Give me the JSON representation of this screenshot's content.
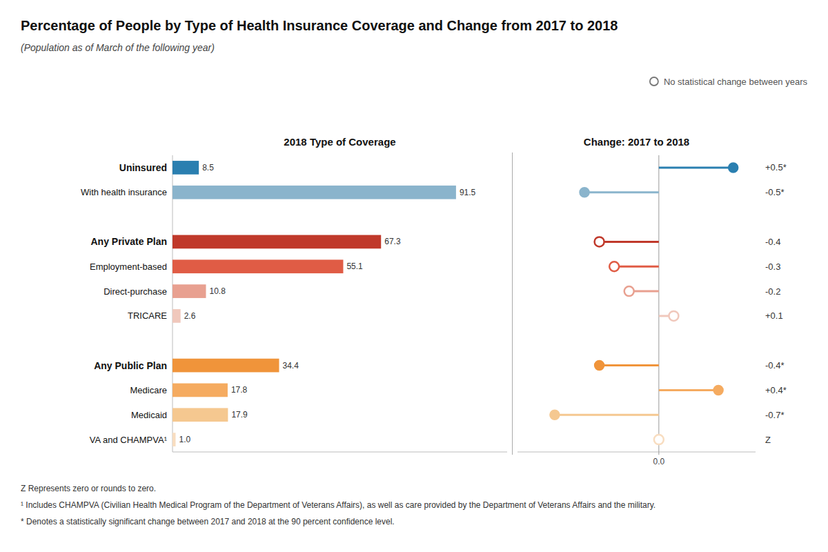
{
  "chart_data": [
    {
      "type": "bar",
      "orientation": "horizontal",
      "title": "Percentage of People by Type of Health Insurance Coverage and Change from 2017 to 2018",
      "subtitle": "(Population as of March of the following year)",
      "xlabel": "2018 Type of Coverage",
      "annotations": [
        "Z Represents zero or rounds to zero.",
        "¹ Includes CHAMPVA (Civilian Health Medical Program of the Department of Veterans Affairs), as well as care provided by the Department of Veterans Affairs and the military.",
        "* Denotes a statistically significant change between 2017 and 2018 at the 90 percent confidence level."
      ],
      "categories": [
        "Uninsured",
        "With health insurance",
        null,
        "Any Private Plan",
        "Employment-based",
        "Direct-purchase",
        "TRICARE",
        null,
        "Any Public Plan",
        "Medicare",
        "Medicaid",
        "VA and CHAMPVA¹"
      ],
      "values": [
        8.5,
        91.5,
        null,
        67.3,
        55.1,
        10.8,
        2.6,
        null,
        34.4,
        17.8,
        17.9,
        1.0
      ],
      "value_labels": [
        "8.5",
        "91.5",
        null,
        "67.3",
        "55.1",
        "10.8",
        "2.6",
        null,
        "34.4",
        "17.8",
        "17.9",
        "1.0"
      ],
      "colors": [
        "#2a7fb0",
        "#8ab4cc",
        null,
        "#c0392b",
        "#e05c45",
        "#e8a090",
        "#f0c8bc",
        null,
        "#f0943a",
        "#f5ab60",
        "#f5c890",
        "#f8ddc0"
      ],
      "xlim": [
        0,
        108
      ],
      "data_labels": true,
      "tick_labels": "y"
    },
    {
      "type": "lollipop",
      "xlabel": "Change: 2017 to 2018",
      "categories": [
        "Uninsured",
        "With health insurance",
        null,
        "Any Private Plan",
        "Employment-based",
        "Direct-purchase",
        "TRICARE",
        null,
        "Any Public Plan",
        "Medicare",
        "Medicaid",
        "VA and CHAMPVA¹"
      ],
      "xlim": [
        -0.95,
        0.65
      ],
      "xticks": [
        {
          "value": 0,
          "label": "0.0"
        }
      ],
      "legend": "upper right",
      "data_labels": true,
      "tick_labels": "x",
      "series": [
        {
          "marker": "filled_circle",
          "values": [
            0.5,
            -0.5,
            null,
            null,
            null,
            null,
            null,
            null,
            -0.4,
            0.4,
            -0.7,
            null
          ],
          "value_labels": [
            "+0.5*",
            "-0.5*",
            null,
            null,
            null,
            null,
            null,
            null,
            "-0.4*",
            "+0.4*",
            "-0.7*",
            null
          ],
          "colors": [
            "#2a7fb0",
            "#8ab4cc",
            null,
            null,
            null,
            null,
            null,
            null,
            "#f0943a",
            "#f5ab60",
            "#f5c890",
            null
          ]
        },
        {
          "name": "No statistical change between years",
          "marker": "open_circle",
          "values": [
            null,
            null,
            null,
            -0.4,
            -0.3,
            -0.2,
            0.1,
            null,
            null,
            null,
            null,
            0.0
          ],
          "value_labels": [
            null,
            null,
            null,
            "-0.4",
            "-0.3",
            "-0.2",
            "+0.1",
            null,
            null,
            null,
            null,
            "Z"
          ],
          "colors": [
            null,
            null,
            null,
            "#c0392b",
            "#e05c45",
            "#e8a090",
            "#f0c8bc",
            null,
            null,
            null,
            null,
            "#f8ddc0"
          ]
        }
      ]
    }
  ]
}
